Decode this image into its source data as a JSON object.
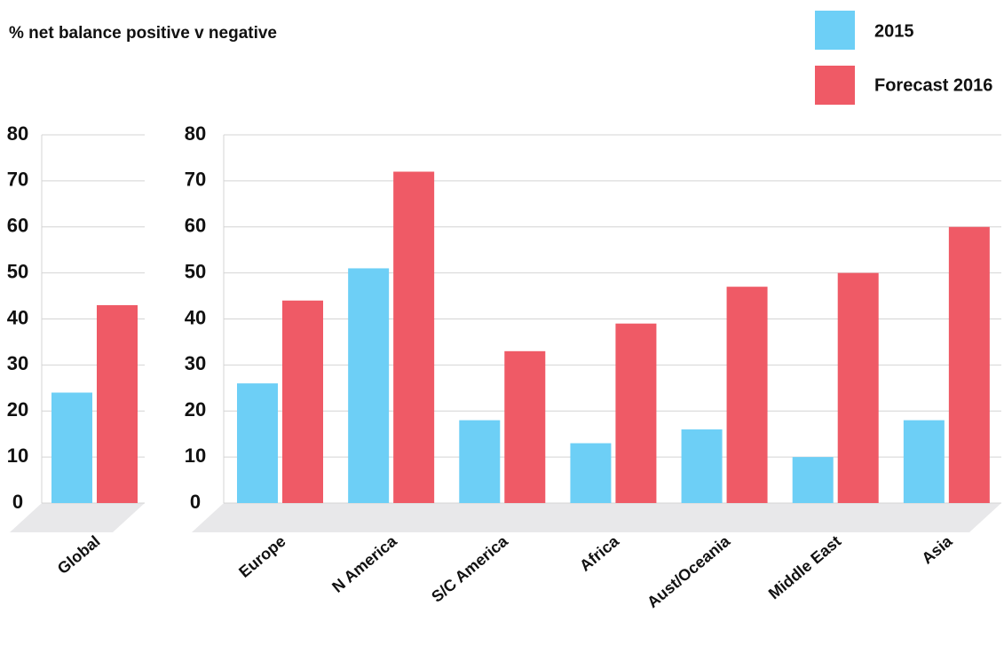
{
  "chart_data": [
    {
      "type": "bar",
      "title": "% net balance positive v negative",
      "categories": [
        "Global"
      ],
      "series": [
        {
          "name": "2015",
          "color": "#6dcff6",
          "values": [
            24
          ]
        },
        {
          "name": "Forecast 2016",
          "color": "#ef5a66",
          "values": [
            43
          ]
        }
      ],
      "ylim": [
        0,
        80
      ],
      "yticks": [
        0,
        10,
        20,
        30,
        40,
        50,
        60,
        70,
        80
      ],
      "grid": true
    },
    {
      "type": "bar",
      "categories": [
        "Europe",
        "N America",
        "S/C America",
        "Africa",
        "Aust/Oceania",
        "Middle East",
        "Asia"
      ],
      "series": [
        {
          "name": "2015",
          "color": "#6dcff6",
          "values": [
            26,
            51,
            18,
            13,
            16,
            10,
            18
          ]
        },
        {
          "name": "Forecast 2016",
          "color": "#ef5a66",
          "values": [
            44,
            72,
            33,
            39,
            47,
            50,
            60
          ]
        }
      ],
      "ylim": [
        0,
        80
      ],
      "yticks": [
        0,
        10,
        20,
        30,
        40,
        50,
        60,
        70,
        80
      ],
      "grid": true
    }
  ]
}
